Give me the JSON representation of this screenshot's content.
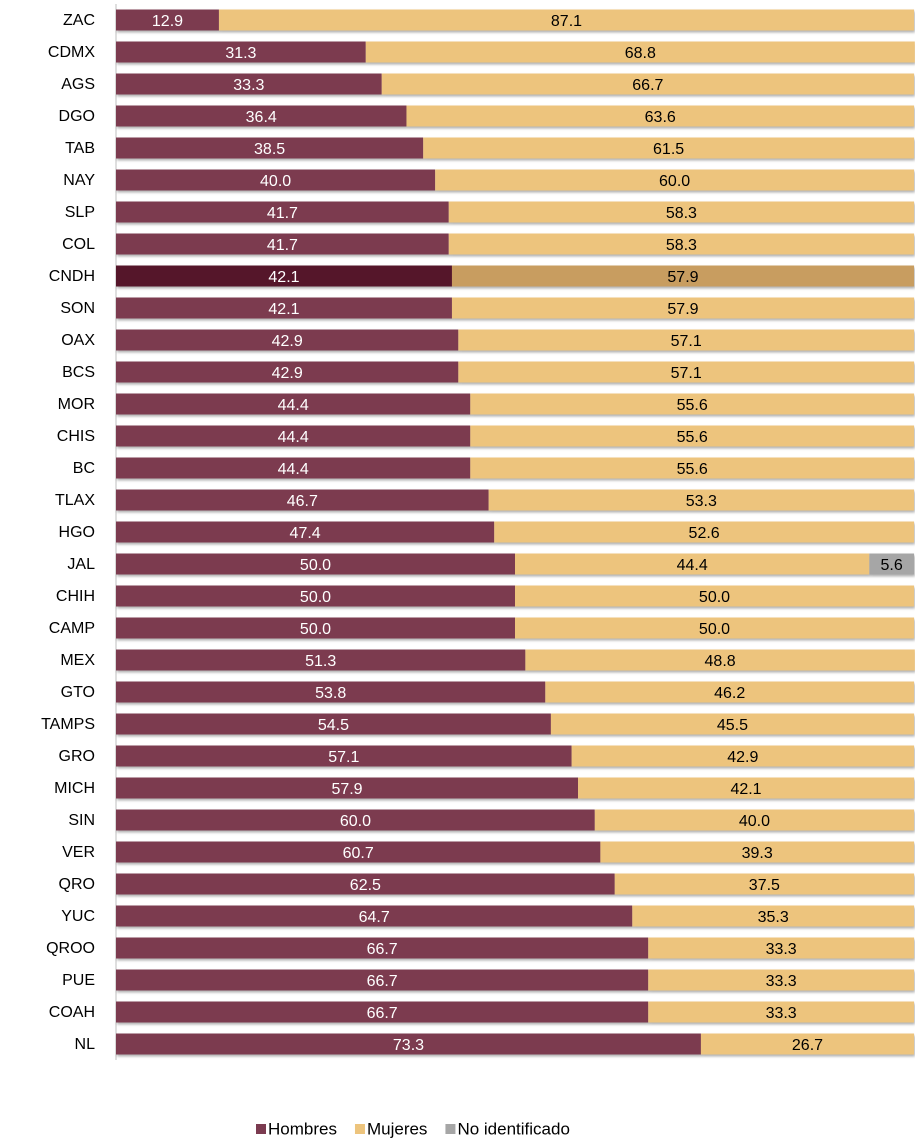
{
  "chart_data": {
    "type": "stacked_barh",
    "categories": [
      "ZAC",
      "CDMX",
      "AGS",
      "DGO",
      "TAB",
      "NAY",
      "SLP",
      "COL",
      "CNDH",
      "SON",
      "OAX",
      "BCS",
      "MOR",
      "CHIS",
      "BC",
      "TLAX",
      "HGO",
      "JAL",
      "CHIH",
      "CAMP",
      "MEX",
      "GTO",
      "TAMPS",
      "GRO",
      "MICH",
      "SIN",
      "VER",
      "QRO",
      "YUC",
      "QROO",
      "PUE",
      "COAH",
      "NL"
    ],
    "highlight_category": "CNDH",
    "xlim": [
      0,
      100
    ],
    "legend": "bottom",
    "series": [
      {
        "name": "Hombres",
        "color": "#7b3b50",
        "highlight_color": "#55142a",
        "label_color": "#ffffff",
        "values": [
          12.9,
          31.3,
          33.3,
          36.4,
          38.5,
          40.0,
          41.7,
          41.7,
          42.1,
          42.1,
          42.9,
          42.9,
          44.4,
          44.4,
          44.4,
          46.7,
          47.4,
          50.0,
          50.0,
          50.0,
          51.3,
          53.8,
          54.5,
          57.1,
          57.9,
          60.0,
          60.7,
          62.5,
          64.7,
          66.7,
          66.7,
          66.7,
          73.3
        ],
        "value_labels": [
          "12.9",
          "31.3",
          "33.3",
          "36.4",
          "38.5",
          "40.0",
          "41.7",
          "41.7",
          "42.1",
          "42.1",
          "42.9",
          "42.9",
          "44.4",
          "44.4",
          "44.4",
          "46.7",
          "47.4",
          "50.0",
          "50.0",
          "50.0",
          "51.3",
          "53.8",
          "54.5",
          "57.1",
          "57.9",
          "60.0",
          "60.7",
          "62.5",
          "64.7",
          "66.7",
          "66.7",
          "66.7",
          "73.3"
        ]
      },
      {
        "name": "Mujeres",
        "color": "#edc47d",
        "highlight_color": "#c89d60",
        "label_color": "#000000",
        "values": [
          87.1,
          68.8,
          66.7,
          63.6,
          61.5,
          60.0,
          58.3,
          58.3,
          57.9,
          57.9,
          57.1,
          57.1,
          55.6,
          55.6,
          55.6,
          53.3,
          52.6,
          44.4,
          50.0,
          50.0,
          48.8,
          46.2,
          45.5,
          42.9,
          42.1,
          40.0,
          39.3,
          37.5,
          35.3,
          33.3,
          33.3,
          33.3,
          26.7
        ],
        "value_labels": [
          "87.1",
          "68.8",
          "66.7",
          "63.6",
          "61.5",
          "60.0",
          "58.3",
          "58.3",
          "57.9",
          "57.9",
          "57.1",
          "57.1",
          "55.6",
          "55.6",
          "55.6",
          "53.3",
          "52.6",
          "44.4",
          "50.0",
          "50.0",
          "48.8",
          "46.2",
          "45.5",
          "42.9",
          "42.1",
          "40.0",
          "39.3",
          "37.5",
          "35.3",
          "33.3",
          "33.3",
          "33.3",
          "26.7"
        ]
      },
      {
        "name": "No identificado",
        "color": "#a6a6a6",
        "highlight_color": "#a6a6a6",
        "label_color": "#000000",
        "values": [
          null,
          null,
          null,
          null,
          null,
          null,
          null,
          null,
          null,
          null,
          null,
          null,
          null,
          null,
          null,
          null,
          null,
          5.6,
          null,
          null,
          null,
          null,
          null,
          null,
          null,
          null,
          null,
          null,
          null,
          null,
          null,
          null,
          null
        ]
      }
    ]
  }
}
